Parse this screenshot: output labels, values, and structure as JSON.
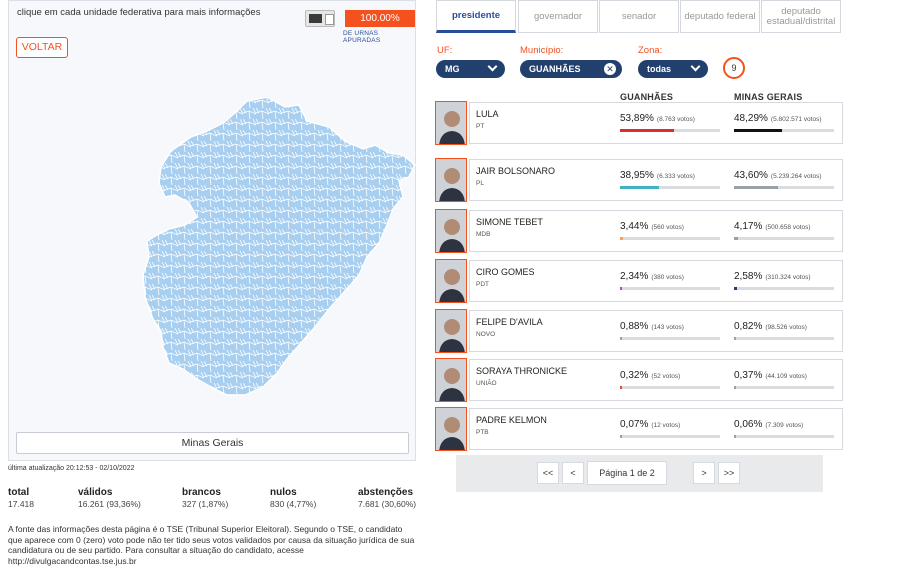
{
  "map": {
    "hint": "clique em cada unidade federativa para mais informações",
    "percent": "100.00%",
    "percent_label": "DE URNAS APURADAS",
    "back_label": "VOLTAR",
    "state_name": "Minas Gerais",
    "map_color": "#a8cff0"
  },
  "last_update": "última atualização 20:12:53 - 02/10/2022",
  "stats": [
    {
      "label": "total",
      "value": "17.418"
    },
    {
      "label": "válidos",
      "value": "16.261 (93,36%)"
    },
    {
      "label": "brancos",
      "value": "327 (1,87%)"
    },
    {
      "label": "nulos",
      "value": "830 (4,77%)"
    },
    {
      "label": "abstenções",
      "value": "7.681 (30,60%)"
    }
  ],
  "disclaimer": "A fonte das informações desta página é o TSE (Tribunal Superior Eleitoral). Segundo o TSE, o candidato que aparece com 0 (zero) voto pode não ter tido seus votos validados por causa da situação jurídica de sua candidatura ou de seu partido. Para consultar a situação do candidato, acesse http://divulgacandcontas.tse.jus.br",
  "tabs": [
    {
      "label": "presidente",
      "active": true
    },
    {
      "label": "governador",
      "active": false
    },
    {
      "label": "senador",
      "active": false
    },
    {
      "label": "deputado federal",
      "active": false
    },
    {
      "label": "deputado estadual/distrital",
      "active": false
    }
  ],
  "filters": {
    "uf_label": "UF:",
    "uf_value": "MG",
    "municipio_label": "Município:",
    "municipio_value": "GUANHÃES",
    "zona_label": "Zona:",
    "zona_value": "todas",
    "zona_count": "9"
  },
  "columns": {
    "local": "GUANHÃES",
    "state": "MINAS GERAIS"
  },
  "candidates": [
    {
      "name": "LULA",
      "party": "PT",
      "local_pct": "53,89%",
      "local_votes": "(8.763 votos)",
      "local_share": 0.5389,
      "state_pct": "48,29%",
      "state_votes": "(5.802.571 votos)",
      "state_share": 0.4829,
      "color": "#e02b2b",
      "state_color": "#111111"
    },
    {
      "name": "JAIR BOLSONARO",
      "party": "PL",
      "local_pct": "38,95%",
      "local_votes": "(6.333 votos)",
      "local_share": 0.3895,
      "state_pct": "43,60%",
      "state_votes": "(5.239.264 votos)",
      "state_share": 0.436,
      "color": "#3fb4c1",
      "state_color": "#9aa0a8"
    },
    {
      "name": "SIMONE TEBET",
      "party": "MDB",
      "local_pct": "3,44%",
      "local_votes": "(560 votos)",
      "local_share": 0.0344,
      "state_pct": "4,17%",
      "state_votes": "(500.658 votos)",
      "state_share": 0.0417,
      "color": "#f4a259",
      "state_color": "#9aa0a8"
    },
    {
      "name": "CIRO GOMES",
      "party": "PDT",
      "local_pct": "2,34%",
      "local_votes": "(380 votos)",
      "local_share": 0.0234,
      "state_pct": "2,58%",
      "state_votes": "(310.324 votos)",
      "state_share": 0.0258,
      "color": "#a84bd6",
      "state_color": "#22406e"
    },
    {
      "name": "FELIPE D'AVILA",
      "party": "NOVO",
      "local_pct": "0,88%",
      "local_votes": "(143 votos)",
      "local_share": 0.0088,
      "state_pct": "0,82%",
      "state_votes": "(98.526 votos)",
      "state_share": 0.0082,
      "color": "#9aa0a8",
      "state_color": "#9aa0a8"
    },
    {
      "name": "SORAYA THRONICKE",
      "party": "UNIÃO",
      "local_pct": "0,32%",
      "local_votes": "(52 votos)",
      "local_share": 0.0032,
      "state_pct": "0,37%",
      "state_votes": "(44.109 votos)",
      "state_share": 0.0037,
      "color": "#e04a4a",
      "state_color": "#9aa0a8"
    },
    {
      "name": "PADRE KELMON",
      "party": "PTB",
      "local_pct": "0,07%",
      "local_votes": "(12 votos)",
      "local_share": 0.0007,
      "state_pct": "0,06%",
      "state_votes": "(7.309 votos)",
      "state_share": 0.0006,
      "color": "#9aa0a8",
      "state_color": "#9aa0a8"
    }
  ],
  "pager": {
    "first": "<<",
    "prev": "<",
    "label": "Página 1 de 2",
    "next": ">",
    "last": ">>"
  }
}
